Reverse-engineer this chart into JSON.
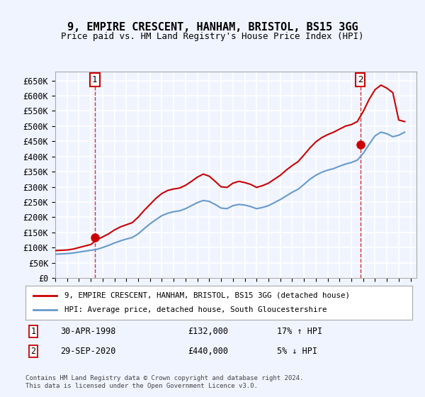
{
  "title": "9, EMPIRE CRESCENT, HANHAM, BRISTOL, BS15 3GG",
  "subtitle": "Price paid vs. HM Land Registry's House Price Index (HPI)",
  "ylabel_ticks": [
    "£0",
    "£50K",
    "£100K",
    "£150K",
    "£200K",
    "£250K",
    "£300K",
    "£350K",
    "£400K",
    "£450K",
    "£500K",
    "£550K",
    "£600K",
    "£650K"
  ],
  "ytick_values": [
    0,
    50000,
    100000,
    150000,
    200000,
    250000,
    300000,
    350000,
    400000,
    450000,
    500000,
    550000,
    600000,
    650000
  ],
  "ylim": [
    0,
    680000
  ],
  "xlim_start": 1995.0,
  "xlim_end": 2025.5,
  "background_color": "#f0f4ff",
  "plot_bg_color": "#f0f4ff",
  "grid_color": "#ffffff",
  "sale1_date": 1998.33,
  "sale1_price": 132000,
  "sale1_label": "1",
  "sale2_date": 2020.75,
  "sale2_price": 440000,
  "sale2_label": "2",
  "legend_line1": "9, EMPIRE CRESCENT, HANHAM, BRISTOL, BS15 3GG (detached house)",
  "legend_line2": "HPI: Average price, detached house, South Gloucestershire",
  "annotation1": "1   30-APR-1998        £132,000        17% ↑ HPI",
  "annotation2": "2   29-SEP-2020        £440,000          5% ↓ HPI",
  "footnote": "Contains HM Land Registry data © Crown copyright and database right 2024.\nThis data is licensed under the Open Government Licence v3.0.",
  "red_color": "#cc0000",
  "blue_color": "#6699cc",
  "hpi_years": [
    1995,
    1995.5,
    1996,
    1996.5,
    1997,
    1997.5,
    1998,
    1998.5,
    1999,
    1999.5,
    2000,
    2000.5,
    2001,
    2001.5,
    2002,
    2002.5,
    2003,
    2003.5,
    2004,
    2004.5,
    2005,
    2005.5,
    2006,
    2006.5,
    2007,
    2007.5,
    2008,
    2008.5,
    2009,
    2009.5,
    2010,
    2010.5,
    2011,
    2011.5,
    2012,
    2012.5,
    2013,
    2013.5,
    2014,
    2014.5,
    2015,
    2015.5,
    2016,
    2016.5,
    2017,
    2017.5,
    2018,
    2018.5,
    2019,
    2019.5,
    2020,
    2020.5,
    2021,
    2021.5,
    2022,
    2022.5,
    2023,
    2023.5,
    2024,
    2024.5
  ],
  "hpi_values": [
    78000,
    79000,
    80000,
    82000,
    85000,
    88000,
    91000,
    94000,
    100000,
    107000,
    115000,
    122000,
    128000,
    133000,
    145000,
    162000,
    178000,
    192000,
    205000,
    213000,
    218000,
    221000,
    228000,
    238000,
    248000,
    255000,
    252000,
    242000,
    230000,
    228000,
    238000,
    242000,
    240000,
    235000,
    228000,
    232000,
    238000,
    248000,
    258000,
    270000,
    282000,
    292000,
    308000,
    325000,
    338000,
    348000,
    355000,
    360000,
    368000,
    375000,
    380000,
    388000,
    410000,
    440000,
    468000,
    480000,
    475000,
    465000,
    470000,
    480000
  ],
  "red_years": [
    1995,
    1995.5,
    1996,
    1996.5,
    1997,
    1997.5,
    1998,
    1998.5,
    1999,
    1999.5,
    2000,
    2000.5,
    2001,
    2001.5,
    2002,
    2002.5,
    2003,
    2003.5,
    2004,
    2004.5,
    2005,
    2005.5,
    2006,
    2006.5,
    2007,
    2007.5,
    2008,
    2008.5,
    2009,
    2009.5,
    2010,
    2010.5,
    2011,
    2011.5,
    2012,
    2012.5,
    2013,
    2013.5,
    2014,
    2014.5,
    2015,
    2015.5,
    2016,
    2016.5,
    2017,
    2017.5,
    2018,
    2018.5,
    2019,
    2019.5,
    2020,
    2020.5,
    2021,
    2021.5,
    2022,
    2022.5,
    2023,
    2023.5,
    2024,
    2024.5
  ],
  "red_values": [
    90000,
    91000,
    92000,
    95000,
    100000,
    105000,
    110000,
    125000,
    135000,
    145000,
    158000,
    168000,
    175000,
    182000,
    200000,
    222000,
    242000,
    262000,
    278000,
    288000,
    293000,
    296000,
    305000,
    318000,
    332000,
    342000,
    335000,
    318000,
    300000,
    298000,
    312000,
    318000,
    314000,
    308000,
    298000,
    304000,
    312000,
    325000,
    338000,
    355000,
    370000,
    383000,
    405000,
    428000,
    448000,
    462000,
    472000,
    480000,
    490000,
    500000,
    505000,
    515000,
    548000,
    588000,
    620000,
    635000,
    625000,
    610000,
    520000,
    515000
  ]
}
